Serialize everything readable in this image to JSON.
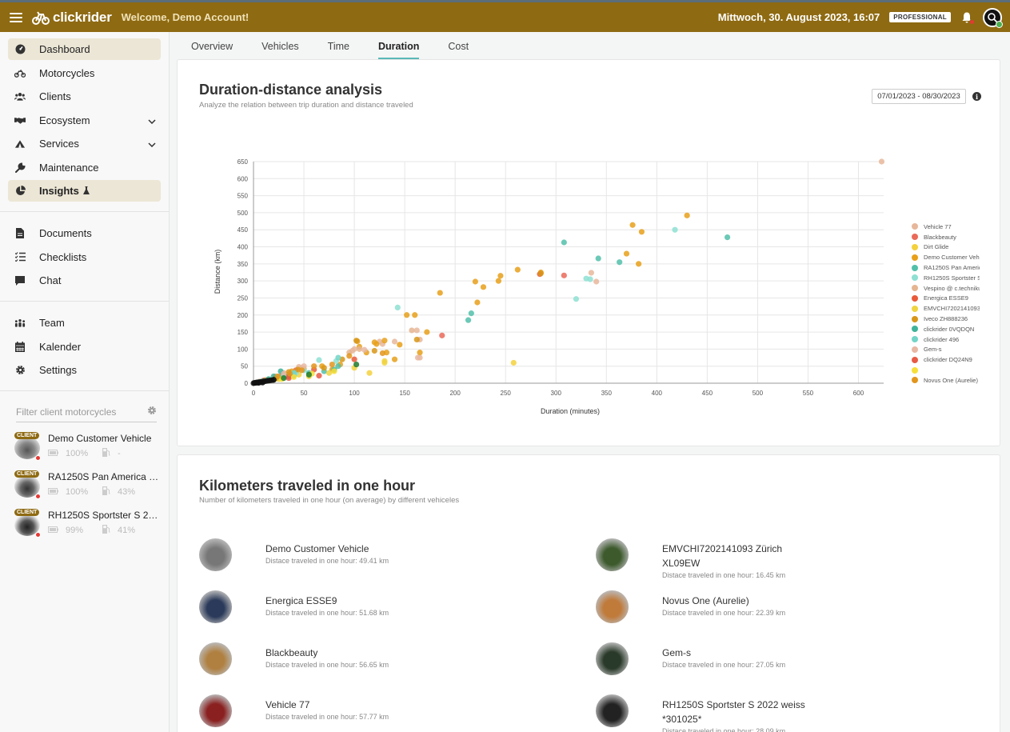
{
  "header": {
    "app_name": "clickrider",
    "welcome": "Welcome, Demo Account!",
    "datetime": "Mittwoch, 30. August 2023, 16:07",
    "plan": "PROFESSIONAL",
    "accent_color": "#8e6a12"
  },
  "sidebar": {
    "nav_primary": [
      {
        "label": "Dashboard",
        "icon": "gauge-icon"
      },
      {
        "label": "Motorcycles",
        "icon": "motorcycle-icon"
      },
      {
        "label": "Clients",
        "icon": "users-icon"
      },
      {
        "label": "Ecosystem",
        "icon": "handshake-icon"
      },
      {
        "label": "Services",
        "icon": "tent-icon"
      },
      {
        "label": "Maintenance",
        "icon": "wrench-icon"
      },
      {
        "label": "Insights",
        "icon": "pie-chart-icon"
      }
    ],
    "nav_secondary": [
      {
        "label": "Documents",
        "icon": "document-icon"
      },
      {
        "label": "Checklists",
        "icon": "checklist-icon"
      },
      {
        "label": "Chat",
        "icon": "chat-icon"
      }
    ],
    "nav_tertiary": [
      {
        "label": "Team",
        "icon": "team-icon"
      },
      {
        "label": "Kalender",
        "icon": "calendar-icon"
      },
      {
        "label": "Settings",
        "icon": "gear-icon"
      }
    ],
    "filter_placeholder": "Filter client motorcycles",
    "client_badge": "CLIENT",
    "clients": [
      {
        "name": "Demo Customer Vehicle",
        "battery": "100%",
        "fuel": "-"
      },
      {
        "name": "RA1250S Pan America 2022",
        "battery": "100%",
        "fuel": "43%"
      },
      {
        "name": "RH1250S Sportster S 2022 weiss",
        "battery": "99%",
        "fuel": "41%"
      }
    ]
  },
  "tabs": [
    "Overview",
    "Vehicles",
    "Time",
    "Duration",
    "Cost"
  ],
  "active_tab": "Duration",
  "duration_card": {
    "title": "Duration-distance analysis",
    "subtitle": "Analyze the relation between trip duration and distance traveled",
    "date_range": "07/01/2023 - 08/30/2023"
  },
  "chart_data": {
    "type": "scatter",
    "title": "",
    "xlabel": "Duration (minutes)",
    "ylabel": "Distance (km)",
    "xlim": [
      0,
      625
    ],
    "ylim": [
      0,
      650
    ],
    "x_ticks": [
      0,
      50,
      100,
      150,
      200,
      250,
      300,
      350,
      400,
      450,
      500,
      550,
      600
    ],
    "y_ticks": [
      0,
      50,
      100,
      150,
      200,
      250,
      300,
      350,
      400,
      450,
      500,
      550,
      600,
      650
    ],
    "grid": true,
    "legend_position": "right",
    "series": [
      {
        "name": "Vehicle 77",
        "color": "#e7b79b",
        "points": [
          [
            623,
            650
          ],
          [
            340,
            298
          ],
          [
            335,
            324
          ],
          [
            162,
            155
          ],
          [
            125,
            122
          ],
          [
            98,
            95
          ],
          [
            100,
            100
          ],
          [
            128,
            115
          ],
          [
            140,
            122
          ],
          [
            165,
            128
          ],
          [
            45,
            48
          ],
          [
            30,
            30
          ],
          [
            22,
            20
          ],
          [
            12,
            10
          ],
          [
            6,
            5
          ],
          [
            165,
            75
          ]
        ]
      },
      {
        "name": "Blackbeauty",
        "color": "#ea6a5a",
        "points": [
          [
            308,
            316
          ],
          [
            187,
            140
          ],
          [
            42,
            38
          ],
          [
            20,
            15
          ],
          [
            10,
            8
          ],
          [
            28,
            22
          ],
          [
            5,
            3
          ]
        ]
      },
      {
        "name": "Dirt Glide",
        "color": "#f4d13d",
        "points": [
          [
            258,
            60
          ],
          [
            115,
            30
          ],
          [
            130,
            65
          ],
          [
            80,
            38
          ],
          [
            45,
            25
          ],
          [
            35,
            20
          ],
          [
            15,
            10
          ],
          [
            25,
            18
          ]
        ]
      },
      {
        "name": "Demo Customer Vehicle",
        "color": "#e8a01a",
        "points": [
          [
            430,
            492
          ],
          [
            376,
            464
          ],
          [
            385,
            444
          ],
          [
            370,
            380
          ],
          [
            382,
            350
          ],
          [
            285,
            325
          ],
          [
            262,
            333
          ],
          [
            245,
            315
          ],
          [
            243,
            300
          ],
          [
            228,
            282
          ],
          [
            220,
            298
          ],
          [
            222,
            237
          ],
          [
            185,
            265
          ],
          [
            160,
            200
          ],
          [
            152,
            200
          ],
          [
            172,
            150
          ],
          [
            165,
            90
          ],
          [
            145,
            113
          ],
          [
            140,
            70
          ],
          [
            130,
            125
          ],
          [
            132,
            90
          ],
          [
            120,
            120
          ],
          [
            122,
            115
          ],
          [
            112,
            90
          ],
          [
            105,
            107
          ],
          [
            103,
            123
          ],
          [
            86,
            55
          ],
          [
            78,
            40
          ],
          [
            68,
            50
          ],
          [
            50,
            42
          ],
          [
            40,
            30
          ],
          [
            38,
            35
          ],
          [
            32,
            25
          ],
          [
            25,
            18
          ],
          [
            18,
            12
          ],
          [
            12,
            8
          ],
          [
            8,
            5
          ]
        ]
      },
      {
        "name": "RA1250S Pan America 2022",
        "color": "#52c0aa",
        "points": [
          [
            470,
            428
          ],
          [
            308,
            413
          ],
          [
            342,
            366
          ],
          [
            363,
            355
          ],
          [
            216,
            205
          ],
          [
            213,
            185
          ],
          [
            84,
            50
          ],
          [
            80,
            40
          ],
          [
            70,
            35
          ],
          [
            55,
            30
          ],
          [
            40,
            22
          ],
          [
            35,
            25
          ],
          [
            28,
            18
          ],
          [
            20,
            12
          ],
          [
            15,
            8
          ],
          [
            8,
            4
          ]
        ]
      },
      {
        "name": "RH1250S Sportster S 2022 weiss",
        "color": "#8ee0d2",
        "points": [
          [
            418,
            450
          ],
          [
            330,
            307
          ],
          [
            334,
            305
          ],
          [
            320,
            247
          ],
          [
            143,
            222
          ],
          [
            82,
            65
          ],
          [
            65,
            68
          ],
          [
            50,
            38
          ],
          [
            42,
            30
          ],
          [
            30,
            22
          ],
          [
            24,
            16
          ],
          [
            14,
            9
          ],
          [
            6,
            3
          ]
        ]
      },
      {
        "name": "Vespino @ c.technikum",
        "color": "#e5b591",
        "points": [
          [
            157,
            155
          ],
          [
            105,
            100
          ],
          [
            95,
            90
          ],
          [
            48,
            45
          ]
        ]
      },
      {
        "name": "Energica ESSE9",
        "color": "#e85a3a",
        "points": [
          [
            284,
            320
          ],
          [
            100,
            70
          ],
          [
            60,
            40
          ],
          [
            35,
            20
          ]
        ]
      },
      {
        "name": "EMVCHI7202141093 Zürich XL09EW",
        "color": "#f0d440",
        "points": [
          [
            130,
            60
          ],
          [
            100,
            45
          ],
          [
            75,
            30
          ],
          [
            55,
            20
          ],
          [
            25,
            12
          ],
          [
            15,
            8
          ]
        ]
      },
      {
        "name": "Iveco ZH888236",
        "color": "#d89618",
        "points": [
          [
            285,
            322
          ],
          [
            162,
            128
          ],
          [
            120,
            95
          ],
          [
            102,
            125
          ],
          [
            88,
            70
          ],
          [
            70,
            45
          ],
          [
            44,
            40
          ],
          [
            35,
            33
          ],
          [
            22,
            14
          ],
          [
            10,
            6
          ]
        ]
      },
      {
        "name": "clickrider 0VQDQN",
        "color": "#3fb29a",
        "points": [
          [
            27,
            35
          ],
          [
            20,
            20
          ],
          [
            15,
            12
          ],
          [
            10,
            6
          ],
          [
            5,
            3
          ]
        ]
      },
      {
        "name": "clickrider 496",
        "color": "#72d5c7",
        "points": [
          [
            84,
            75
          ],
          [
            40,
            30
          ],
          [
            30,
            20
          ],
          [
            18,
            12
          ],
          [
            8,
            5
          ]
        ]
      },
      {
        "name": "Gem-s",
        "color": "#e8b8a4",
        "points": [
          [
            163,
            75
          ],
          [
            110,
            98
          ],
          [
            50,
            50
          ],
          [
            30,
            28
          ]
        ]
      },
      {
        "name": "clickrider DQ24N9",
        "color": "#e85a45",
        "points": [
          [
            65,
            22
          ],
          [
            35,
            15
          ],
          [
            20,
            10
          ]
        ]
      },
      {
        "name": "",
        "color": "#f8de38",
        "points": [
          [
            80,
            35
          ],
          [
            58,
            28
          ],
          [
            40,
            18
          ],
          [
            28,
            12
          ]
        ]
      },
      {
        "name": "Novus One (Aurelie)",
        "color": "#e3951c",
        "points": [
          [
            128,
            88
          ],
          [
            95,
            80
          ],
          [
            78,
            55
          ],
          [
            60,
            50
          ],
          [
            48,
            38
          ],
          [
            36,
            28
          ],
          [
            24,
            20
          ]
        ]
      },
      {
        "name": "",
        "color": "#1f7a2e",
        "points": [
          [
            102,
            55
          ],
          [
            55,
            25
          ],
          [
            30,
            15
          ],
          [
            20,
            10
          ]
        ]
      },
      {
        "name": "",
        "color": "#111111",
        "points": [
          [
            0,
            0
          ],
          [
            2,
            1
          ],
          [
            4,
            2
          ],
          [
            6,
            3
          ],
          [
            8,
            4
          ],
          [
            10,
            5
          ],
          [
            12,
            6
          ],
          [
            14,
            7
          ],
          [
            16,
            8
          ],
          [
            18,
            9
          ],
          [
            20,
            10
          ],
          [
            3,
            2
          ],
          [
            5,
            1
          ],
          [
            7,
            3
          ],
          [
            9,
            2
          ],
          [
            1,
            1
          ]
        ]
      }
    ]
  },
  "km_card": {
    "title": "Kilometers traveled in one hour",
    "subtitle": "Number of kilometers traveled in one hour (on average) by different vehiceles",
    "items": [
      {
        "name": "Demo Customer Vehicle",
        "desc": "Distace traveled in one hour: 49.41 km",
        "color": "#777777"
      },
      {
        "name": "EMVCHI7202141093 Zürich XL09EW",
        "desc": "Distace traveled in one hour: 16.45 km",
        "color": "#3d5a2d"
      },
      {
        "name": "Energica ESSE9",
        "desc": "Distace traveled in one hour: 51.68 km",
        "color": "#2b3a5a"
      },
      {
        "name": "Novus One (Aurelie)",
        "desc": "Distace traveled in one hour: 22.39 km",
        "color": "#c07a3a"
      },
      {
        "name": "Blackbeauty",
        "desc": "Distace traveled in one hour: 56.65 km",
        "color": "#b08040"
      },
      {
        "name": "Gem-s",
        "desc": "Distace traveled in one hour: 27.05 km",
        "color": "#2a3a2a"
      },
      {
        "name": "Vehicle 77",
        "desc": "Distace traveled in one hour: 57.77 km",
        "color": "#8a2020"
      },
      {
        "name": "RH1250S Sportster S 2022 weiss *301025*",
        "desc": "Distace traveled in one hour: 28.09 km",
        "color": "#222222"
      }
    ]
  }
}
